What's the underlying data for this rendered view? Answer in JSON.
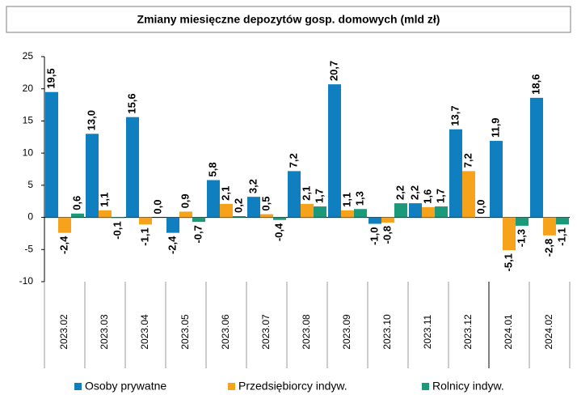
{
  "chart_data": {
    "type": "bar",
    "title": "Zmiany miesięczne depozytów gosp. domowych (mld zł)",
    "categories": [
      "2023.02",
      "2023.03",
      "2023.04",
      "2023.05",
      "2023.06",
      "2023.07",
      "2023.08",
      "2023.09",
      "2023.10",
      "2023.11",
      "2023.12",
      "2024.01",
      "2024.02"
    ],
    "series": [
      {
        "name": "Osoby prywatne",
        "color": "#0f7fc0",
        "values": [
          19.5,
          13.0,
          15.6,
          -2.4,
          5.8,
          3.2,
          7.2,
          20.7,
          -1.0,
          2.2,
          13.7,
          11.9,
          18.6
        ],
        "value_labels": [
          "19,5",
          "13,0",
          "15,6",
          "-2,4",
          "5,8",
          "3,2",
          "7,2",
          "20,7",
          "-1,0",
          "2,2",
          "13,7",
          "11,9",
          "18,6"
        ]
      },
      {
        "name": "Przedsiębiorcy indyw.",
        "color": "#f7a21b",
        "values": [
          -2.4,
          1.1,
          -1.1,
          0.9,
          2.1,
          0.5,
          2.1,
          1.1,
          -0.8,
          1.6,
          7.2,
          -5.1,
          -2.8
        ],
        "value_labels": [
          "-2,4",
          "1,1",
          "-1,1",
          "0,9",
          "2,1",
          "0,5",
          "2,1",
          "1,1",
          "-0,8",
          "1,6",
          "7,2",
          "-5,1",
          "-2,8"
        ]
      },
      {
        "name": "Rolnicy indyw.",
        "color": "#1a9a7a",
        "values": [
          0.6,
          -0.1,
          0.0,
          -0.7,
          0.2,
          -0.4,
          1.7,
          1.3,
          2.2,
          1.7,
          0.0,
          -1.3,
          -1.1
        ],
        "value_labels": [
          "0,6",
          "-0,1",
          "0,0",
          "-0,7",
          "0,2",
          "-0,4",
          "1,7",
          "1,3",
          "2,2",
          "1,7",
          "0,0",
          "-1,3",
          "-1,1"
        ]
      }
    ],
    "ylim": [
      -10,
      25
    ],
    "yticks": [
      -10,
      -5,
      0,
      5,
      10,
      15,
      20,
      25
    ]
  }
}
